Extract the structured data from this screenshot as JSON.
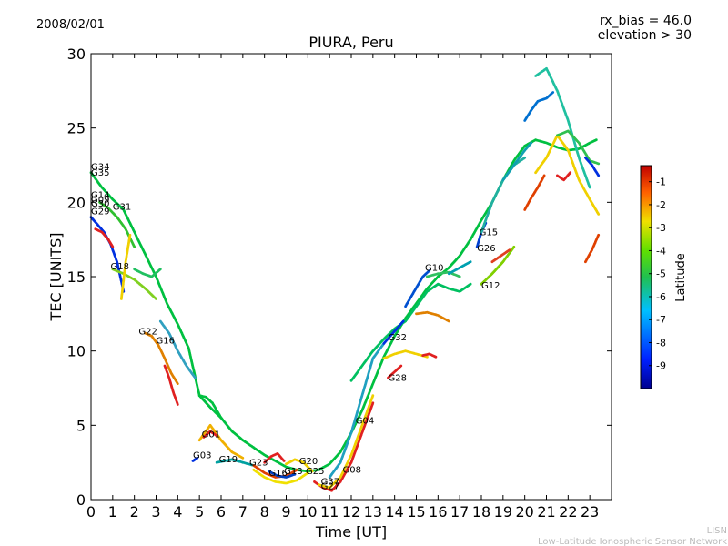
{
  "header": {
    "date": "2008/02/01",
    "rx_bias": "rx_bias = 46.0",
    "elevation": "elevation > 30"
  },
  "footer": {
    "org_short": "LISN",
    "org_long": "Low-Latitude Ionospheric Sensor Network"
  },
  "chart_data": {
    "type": "scatter",
    "title": "PIURA, Peru",
    "xlabel": "Time [UT]",
    "ylabel": "TEC [UNITS]",
    "xlim": [
      0,
      24
    ],
    "ylim": [
      0,
      30
    ],
    "xticks": [
      "0",
      "1",
      "2",
      "3",
      "4",
      "5",
      "6",
      "7",
      "8",
      "9",
      "10",
      "11",
      "12",
      "13",
      "14",
      "15",
      "16",
      "17",
      "18",
      "19",
      "20",
      "21",
      "22",
      "23"
    ],
    "yticks": [
      "0",
      "5",
      "10",
      "15",
      "20",
      "25",
      "30"
    ],
    "grid": false,
    "colorbar": {
      "label": "Latitude",
      "range": [
        -10,
        -0.3
      ],
      "ticks": [
        "-9",
        "-8",
        "-7",
        "-6",
        "-5",
        "-4",
        "-3",
        "-2",
        "-1"
      ]
    },
    "series": [
      {
        "color": "#00c040",
        "x": [
          0.0,
          0.5,
          1.0,
          1.5,
          2.0,
          2.5,
          3.0,
          3.5,
          4.0,
          4.5,
          5.0,
          5.5,
          6.0,
          6.5,
          7.0,
          7.5,
          8.0,
          8.5,
          9.0,
          9.5,
          10.0,
          10.5,
          11.0,
          11.5,
          12.0,
          12.5,
          13.0,
          13.5,
          14.0,
          14.5,
          15.0,
          15.5,
          16.0,
          16.5,
          17.0,
          17.5,
          18.0,
          18.5,
          19.0,
          19.5,
          20.0,
          20.5,
          21.0,
          21.5,
          22.0,
          22.5,
          23.0,
          23.3
        ],
        "y": [
          22.0,
          21.0,
          20.2,
          19.5,
          18.0,
          16.5,
          15.0,
          13.2,
          11.8,
          10.2,
          7.0,
          6.2,
          5.5,
          4.6,
          4.0,
          3.5,
          3.0,
          2.6,
          2.2,
          2.0,
          1.9,
          2.0,
          2.4,
          3.2,
          4.5,
          6.0,
          7.8,
          9.6,
          11.0,
          12.2,
          13.2,
          14.2,
          15.0,
          15.6,
          16.4,
          17.5,
          18.8,
          20.0,
          21.5,
          22.8,
          23.8,
          24.2,
          24.0,
          23.7,
          23.5,
          23.6,
          24.0,
          24.2
        ]
      },
      {
        "color": "#0030e0",
        "x": [
          0.0,
          0.3,
          0.6,
          0.9,
          1.2,
          1.5
        ],
        "y": [
          19.0,
          18.5,
          18.0,
          17.2,
          16.0,
          14.0
        ]
      },
      {
        "color": "#e02020",
        "x": [
          0.2,
          0.5,
          0.8,
          1.0
        ],
        "y": [
          18.2,
          18.0,
          17.5,
          17.0
        ]
      },
      {
        "color": "#30c030",
        "x": [
          0.4,
          0.8,
          1.2,
          1.6,
          2.0
        ],
        "y": [
          20.0,
          19.6,
          19.0,
          18.2,
          17.0
        ]
      },
      {
        "color": "#80d020",
        "x": [
          1.0,
          1.5,
          2.0,
          2.5,
          3.0
        ],
        "y": [
          15.5,
          15.2,
          14.8,
          14.2,
          13.5
        ]
      },
      {
        "color": "#f0d000",
        "x": [
          1.4,
          1.6,
          1.8
        ],
        "y": [
          13.5,
          16.0,
          17.8
        ]
      },
      {
        "color": "#e08000",
        "x": [
          2.5,
          2.8,
          3.1,
          3.4,
          3.7,
          4.0
        ],
        "y": [
          11.2,
          11.0,
          10.4,
          9.5,
          8.5,
          7.8
        ]
      },
      {
        "color": "#e02020",
        "x": [
          3.4,
          3.6,
          3.8,
          4.0
        ],
        "y": [
          9.0,
          8.2,
          7.2,
          6.4
        ]
      },
      {
        "color": "#20c060",
        "x": [
          2.0,
          2.4,
          2.8,
          3.2
        ],
        "y": [
          15.5,
          15.2,
          15.0,
          15.5
        ]
      },
      {
        "color": "#30a0c0",
        "x": [
          3.2,
          3.6,
          4.0,
          4.4,
          4.8
        ],
        "y": [
          12.0,
          11.2,
          10.0,
          9.0,
          8.2
        ]
      },
      {
        "color": "#00c040",
        "x": [
          5.0,
          5.3,
          5.6,
          6.0
        ],
        "y": [
          7.0,
          6.9,
          6.5,
          5.5
        ]
      },
      {
        "color": "#f0b000",
        "x": [
          5.0,
          5.5,
          6.0,
          6.5,
          7.0
        ],
        "y": [
          4.0,
          5.0,
          4.0,
          3.2,
          2.8
        ]
      },
      {
        "color": "#e02020",
        "x": [
          5.2,
          5.5,
          5.8
        ],
        "y": [
          4.2,
          4.6,
          4.3
        ]
      },
      {
        "color": "#0030e0",
        "x": [
          4.7,
          4.9
        ],
        "y": [
          2.6,
          2.8
        ]
      },
      {
        "color": "#00a0a0",
        "x": [
          5.8,
          6.5,
          7.0,
          7.5
        ],
        "y": [
          2.5,
          2.7,
          2.5,
          2.3
        ]
      },
      {
        "color": "#e04000",
        "x": [
          7.5,
          8.0,
          8.5,
          9.0,
          9.5
        ],
        "y": [
          2.3,
          1.8,
          1.5,
          1.6,
          2.0
        ]
      },
      {
        "color": "#f0e000",
        "x": [
          7.5,
          8.0,
          8.5,
          9.0,
          9.5,
          10.0
        ],
        "y": [
          2.0,
          1.5,
          1.2,
          1.1,
          1.3,
          1.8
        ]
      },
      {
        "color": "#e02020",
        "x": [
          8.0,
          8.3,
          8.6,
          8.9
        ],
        "y": [
          2.5,
          2.9,
          3.1,
          2.6
        ]
      },
      {
        "color": "#f0d000",
        "x": [
          9.0,
          9.4,
          9.8,
          10.2
        ],
        "y": [
          2.4,
          2.7,
          2.5,
          1.9
        ]
      },
      {
        "color": "#0040c0",
        "x": [
          8.2,
          8.6,
          9.0,
          9.4
        ],
        "y": [
          1.9,
          1.6,
          1.5,
          1.7
        ]
      },
      {
        "color": "#e02020",
        "x": [
          10.3,
          10.7,
          11.1,
          11.5,
          12.0,
          12.5,
          13.0
        ],
        "y": [
          1.2,
          0.8,
          0.6,
          1.2,
          2.5,
          4.5,
          6.5
        ]
      },
      {
        "color": "#f0d000",
        "x": [
          10.5,
          11.0,
          11.5,
          12.0,
          12.5,
          13.0
        ],
        "y": [
          1.0,
          0.8,
          1.5,
          3.0,
          5.0,
          7.0
        ]
      },
      {
        "color": "#20a0c0",
        "x": [
          11.0,
          11.5,
          12.0,
          12.5,
          13.0,
          13.5
        ],
        "y": [
          1.5,
          2.5,
          4.5,
          7.0,
          9.5,
          10.5
        ]
      },
      {
        "color": "#00c060",
        "x": [
          12.0,
          12.5,
          13.0,
          13.5,
          14.0,
          14.5,
          15.0,
          15.5,
          16.0,
          16.5,
          17.0,
          17.5
        ],
        "y": [
          8.0,
          9.0,
          10.0,
          10.8,
          11.5,
          12.0,
          13.0,
          14.0,
          14.5,
          14.2,
          14.0,
          14.5
        ]
      },
      {
        "color": "#e02020",
        "x": [
          13.7,
          14.0,
          14.3
        ],
        "y": [
          8.2,
          8.6,
          9.0
        ]
      },
      {
        "color": "#f0d000",
        "x": [
          13.5,
          14.0,
          14.5,
          15.0,
          15.5
        ],
        "y": [
          9.5,
          9.8,
          10.0,
          9.8,
          9.6
        ]
      },
      {
        "color": "#e02020",
        "x": [
          15.3,
          15.6,
          15.9
        ],
        "y": [
          9.7,
          9.8,
          9.6
        ]
      },
      {
        "color": "#e08000",
        "x": [
          15.0,
          15.5,
          16.0,
          16.5
        ],
        "y": [
          12.5,
          12.6,
          12.4,
          12.0
        ]
      },
      {
        "color": "#0030e0",
        "x": [
          13.5,
          13.8,
          14.1,
          14.4
        ],
        "y": [
          10.5,
          11.0,
          11.5,
          12.0
        ]
      },
      {
        "color": "#0050d0",
        "x": [
          14.5,
          14.9,
          15.3,
          15.6
        ],
        "y": [
          13.0,
          14.0,
          15.0,
          15.4
        ]
      },
      {
        "color": "#30c060",
        "x": [
          15.5,
          16.0,
          16.5,
          17.0
        ],
        "y": [
          15.0,
          15.2,
          15.3,
          15.0
        ]
      },
      {
        "color": "#00a0b0",
        "x": [
          16.5,
          17.0,
          17.5
        ],
        "y": [
          15.2,
          15.6,
          16.0
        ]
      },
      {
        "color": "#0040d0",
        "x": [
          17.8,
          18.0,
          18.2
        ],
        "y": [
          17.0,
          18.0,
          18.6
        ]
      },
      {
        "color": "#20b0a0",
        "x": [
          18.0,
          18.5,
          19.0,
          19.5,
          20.0
        ],
        "y": [
          18.0,
          20.0,
          21.5,
          22.5,
          23.0
        ]
      },
      {
        "color": "#80d000",
        "x": [
          18.0,
          18.5,
          19.0,
          19.5
        ],
        "y": [
          14.5,
          15.2,
          16.0,
          17.0
        ]
      },
      {
        "color": "#e04020",
        "x": [
          18.5,
          19.0,
          19.3
        ],
        "y": [
          16.0,
          16.5,
          16.8
        ]
      },
      {
        "color": "#10a0b0",
        "x": [
          19.0,
          19.5,
          20.0,
          20.3
        ],
        "y": [
          21.5,
          22.5,
          23.5,
          24.0
        ]
      },
      {
        "color": "#0070d0",
        "x": [
          20.0,
          20.3,
          20.6,
          21.0,
          21.3
        ],
        "y": [
          25.5,
          26.2,
          26.8,
          27.0,
          27.4
        ]
      },
      {
        "color": "#20c0a0",
        "x": [
          20.5,
          21.0,
          21.5,
          22.0,
          22.5,
          23.0
        ],
        "y": [
          28.5,
          29.0,
          27.5,
          25.5,
          23.0,
          21.0
        ]
      },
      {
        "color": "#e04000",
        "x": [
          20.0,
          20.3,
          20.6,
          20.9
        ],
        "y": [
          19.5,
          20.3,
          21.0,
          21.8
        ]
      },
      {
        "color": "#f0d000",
        "x": [
          20.5,
          21.0,
          21.5,
          22.0,
          22.5,
          23.0,
          23.4
        ],
        "y": [
          22.0,
          23.0,
          24.5,
          23.5,
          21.5,
          20.2,
          19.2
        ]
      },
      {
        "color": "#e02020",
        "x": [
          21.5,
          21.8,
          22.1
        ],
        "y": [
          21.8,
          21.5,
          22.0
        ]
      },
      {
        "color": "#30c050",
        "x": [
          21.5,
          22.0,
          22.5,
          23.0,
          23.4
        ],
        "y": [
          24.5,
          24.8,
          24.0,
          22.8,
          22.6
        ]
      },
      {
        "color": "#0030e0",
        "x": [
          22.8,
          23.1,
          23.4
        ],
        "y": [
          23.0,
          22.5,
          21.8
        ]
      },
      {
        "color": "#e04000",
        "x": [
          22.8,
          23.1,
          23.4
        ],
        "y": [
          16.0,
          16.8,
          17.8
        ]
      }
    ],
    "labels": [
      {
        "text": "G34",
        "x": 0.0,
        "y": 22.2
      },
      {
        "text": "G35",
        "x": 0.0,
        "y": 21.8
      },
      {
        "text": "G14",
        "x": 0.0,
        "y": 20.3
      },
      {
        "text": "G09",
        "x": 0.0,
        "y": 20.0
      },
      {
        "text": "G30",
        "x": 0.0,
        "y": 19.7
      },
      {
        "text": "G29",
        "x": 0.0,
        "y": 19.2
      },
      {
        "text": "G31",
        "x": 1.0,
        "y": 19.5
      },
      {
        "text": "G18",
        "x": 0.9,
        "y": 15.5
      },
      {
        "text": "G22",
        "x": 2.2,
        "y": 11.1
      },
      {
        "text": "G16",
        "x": 3.0,
        "y": 10.5
      },
      {
        "text": "G01",
        "x": 5.1,
        "y": 4.2
      },
      {
        "text": "G03",
        "x": 4.7,
        "y": 2.8
      },
      {
        "text": "G19",
        "x": 5.9,
        "y": 2.5
      },
      {
        "text": "G23",
        "x": 7.3,
        "y": 2.3
      },
      {
        "text": "G16",
        "x": 8.2,
        "y": 1.6
      },
      {
        "text": "G13",
        "x": 8.9,
        "y": 1.7
      },
      {
        "text": "G20",
        "x": 9.6,
        "y": 2.4
      },
      {
        "text": "G25",
        "x": 9.9,
        "y": 1.7
      },
      {
        "text": "G08",
        "x": 11.6,
        "y": 1.8
      },
      {
        "text": "G37",
        "x": 10.6,
        "y": 1.0
      },
      {
        "text": "G27",
        "x": 10.6,
        "y": 0.7
      },
      {
        "text": "G04",
        "x": 12.2,
        "y": 5.1
      },
      {
        "text": "G32",
        "x": 13.7,
        "y": 10.7
      },
      {
        "text": "G28",
        "x": 13.7,
        "y": 8.0
      },
      {
        "text": "G10",
        "x": 15.4,
        "y": 15.4
      },
      {
        "text": "G12",
        "x": 18.0,
        "y": 14.2
      },
      {
        "text": "G15",
        "x": 17.9,
        "y": 17.8
      },
      {
        "text": "G26",
        "x": 17.8,
        "y": 16.7
      }
    ]
  }
}
